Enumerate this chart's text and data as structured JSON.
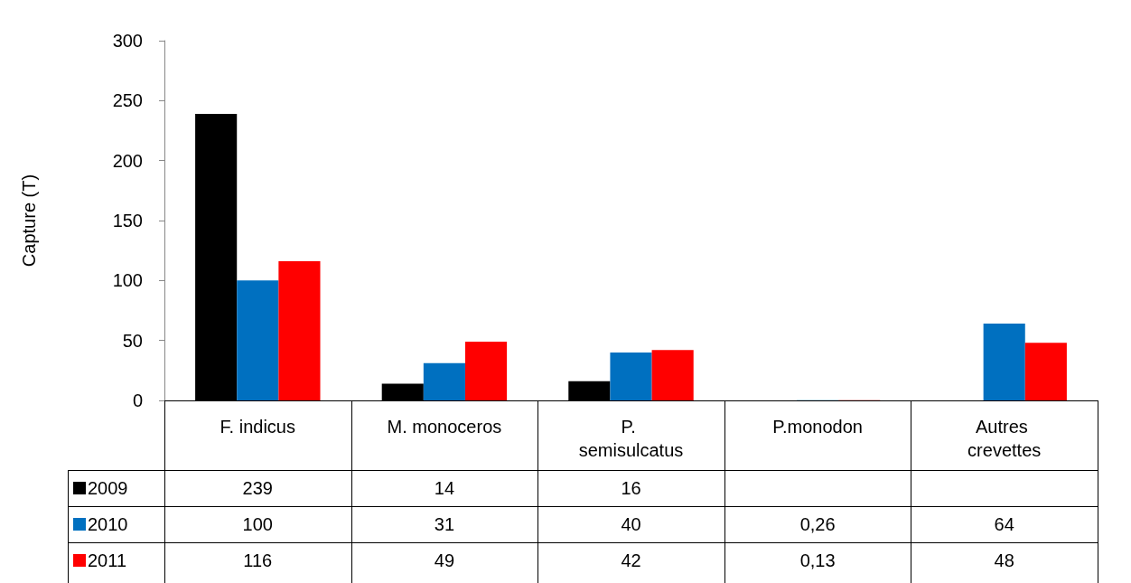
{
  "chart_data": {
    "type": "bar",
    "ylabel": "Capture (T)",
    "categories": [
      "F. indicus",
      "M. monoceros",
      "P. semisulcatus",
      "P.monodon",
      "Autres crevettes"
    ],
    "series": [
      {
        "name": "2009",
        "color": "#000000",
        "values": [
          239,
          14,
          16,
          null,
          null
        ],
        "value_labels": [
          "239",
          "14",
          "16",
          null,
          null
        ]
      },
      {
        "name": "2010",
        "color": "#0070c0",
        "values": [
          100,
          31,
          40,
          0.26,
          64
        ],
        "value_labels": [
          "100",
          "31",
          "40",
          "0,26",
          "64"
        ]
      },
      {
        "name": "2011",
        "color": "#ff0000",
        "values": [
          116,
          49,
          42,
          0.13,
          48
        ],
        "value_labels": [
          "116",
          "49",
          "42",
          "0,13",
          "48"
        ]
      }
    ],
    "ylim": [
      0,
      300
    ],
    "yticks": [
      0,
      50,
      100,
      150,
      200,
      250,
      300
    ],
    "grid": false,
    "legend": "bottom left"
  }
}
